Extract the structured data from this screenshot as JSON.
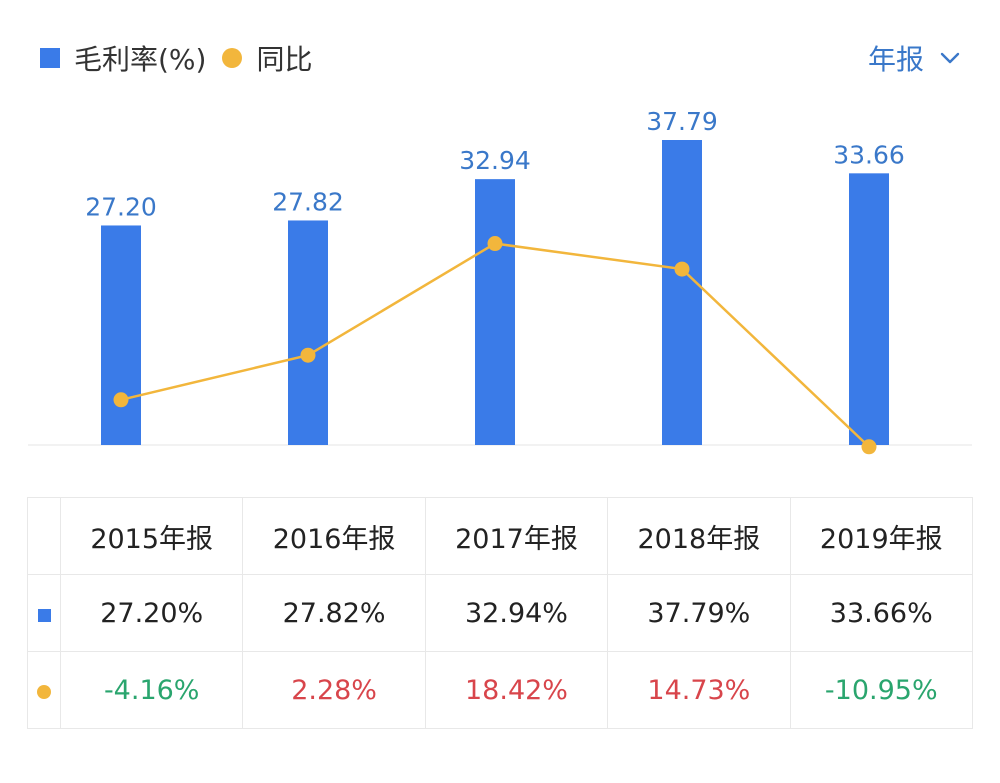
{
  "legend": {
    "bar_label": "毛利率(%)",
    "line_label": "同比"
  },
  "period_selector": {
    "label": "年报",
    "icon": "chevron-down-icon"
  },
  "colors": {
    "bar": "#3a7be8",
    "line": "#f2b63c",
    "accent_text": "#3a78c9",
    "negative": "#2aa56e",
    "positive": "#d8454b"
  },
  "chart_data": {
    "type": "bar",
    "categories": [
      "2015年报",
      "2016年报",
      "2017年报",
      "2018年报",
      "2019年报"
    ],
    "series": [
      {
        "name": "毛利率(%)",
        "type": "bar",
        "values": [
          27.2,
          27.82,
          32.94,
          37.79,
          33.66
        ],
        "data_labels": [
          "27.20",
          "27.82",
          "32.94",
          "37.79",
          "33.66"
        ]
      },
      {
        "name": "同比",
        "type": "line",
        "values": [
          -4.16,
          2.28,
          18.42,
          14.73,
          -10.95
        ]
      }
    ],
    "grid": false,
    "legend_position": "top-left"
  },
  "table": {
    "header": [
      "2015年报",
      "2016年报",
      "2017年报",
      "2018年报",
      "2019年报"
    ],
    "rows": [
      {
        "marker": "bar",
        "cells": [
          "27.20%",
          "27.82%",
          "32.94%",
          "37.79%",
          "33.66%"
        ]
      },
      {
        "marker": "dot",
        "cells": [
          "-4.16%",
          "2.28%",
          "18.42%",
          "14.73%",
          "-10.95%"
        ]
      }
    ]
  }
}
